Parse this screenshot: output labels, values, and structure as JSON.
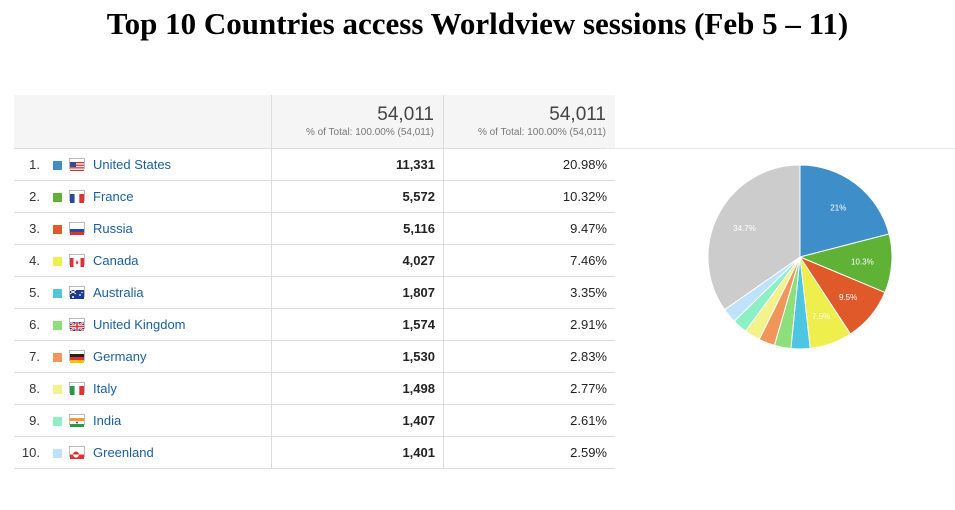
{
  "title": "Top 10 Countries access Worldview sessions (Feb 5 – 11)",
  "table": {
    "columns": [
      {
        "total": "54,011",
        "sub": "% of Total: 100.00% (54,011)"
      },
      {
        "total": "54,011",
        "sub": "% of Total: 100.00% (54,011)"
      }
    ],
    "rows": [
      {
        "rank": "1.",
        "country": "United States",
        "sessions": "11,331",
        "percent": "20.98%",
        "color": "#3d8ec9"
      },
      {
        "rank": "2.",
        "country": "France",
        "sessions": "5,572",
        "percent": "10.32%",
        "color": "#5fb236"
      },
      {
        "rank": "3.",
        "country": "Russia",
        "sessions": "5,116",
        "percent": "9.47%",
        "color": "#e0592a"
      },
      {
        "rank": "4.",
        "country": "Canada",
        "sessions": "4,027",
        "percent": "7.46%",
        "color": "#eeee4d"
      },
      {
        "rank": "5.",
        "country": "Australia",
        "sessions": "1,807",
        "percent": "3.35%",
        "color": "#4ec6e0"
      },
      {
        "rank": "6.",
        "country": "United Kingdom",
        "sessions": "1,574",
        "percent": "2.91%",
        "color": "#8ddf7b"
      },
      {
        "rank": "7.",
        "country": "Germany",
        "sessions": "1,530",
        "percent": "2.83%",
        "color": "#f2955b"
      },
      {
        "rank": "8.",
        "country": "Italy",
        "sessions": "1,498",
        "percent": "2.77%",
        "color": "#f4f28a"
      },
      {
        "rank": "9.",
        "country": "India",
        "sessions": "1,407",
        "percent": "2.61%",
        "color": "#8df0c4"
      },
      {
        "rank": "10.",
        "country": "Greenland",
        "sessions": "1,401",
        "percent": "2.59%",
        "color": "#bfe2fb"
      }
    ]
  },
  "chart_data": {
    "type": "pie",
    "categories": [
      "United States",
      "France",
      "Russia",
      "Canada",
      "Australia",
      "United Kingdom",
      "Germany",
      "Italy",
      "India",
      "Greenland",
      ""
    ],
    "values": [
      20.98,
      10.32,
      9.47,
      7.46,
      3.35,
      2.91,
      2.83,
      2.77,
      2.61,
      2.59,
      34.71
    ],
    "labels": [
      "21%",
      "10.3%",
      "9.5%",
      "7.5%",
      "",
      "",
      "",
      "",
      "",
      "",
      "34.7%"
    ],
    "colors": [
      "#3d8ec9",
      "#5fb236",
      "#e0592a",
      "#eeee4d",
      "#4ec6e0",
      "#8ddf7b",
      "#f2955b",
      "#f4f28a",
      "#8df0c4",
      "#bfe2fb",
      "#cccccc"
    ]
  }
}
